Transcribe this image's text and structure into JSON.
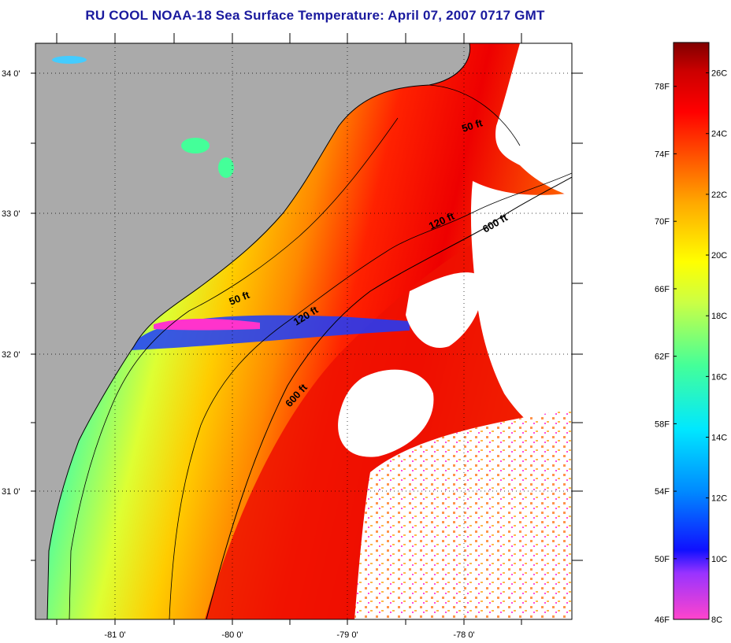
{
  "title": "RU COOL  NOAA-18  Sea Surface Temperature:  April 07, 2007 0717 GMT",
  "map": {
    "lat_ticks": [
      "34 0'",
      "33 0'",
      "32 0'",
      "31 0'"
    ],
    "lon_ticks": [
      "-81 0'",
      "-80 0'",
      "-79 0'",
      "-78 0'"
    ],
    "contours": [
      {
        "label": "50 ft"
      },
      {
        "label": "50 ft"
      },
      {
        "label": "120 ft"
      },
      {
        "label": "120 ft"
      },
      {
        "label": "600 ft"
      },
      {
        "label": "600 ft"
      }
    ],
    "colors": {
      "land": "#aaaaaa",
      "cloud": "#ffffff",
      "coast": "#000000"
    }
  },
  "colorbar": {
    "fahrenheit_labels": [
      "78F",
      "74F",
      "70F",
      "66F",
      "62F",
      "58F",
      "54F",
      "50F",
      "46F"
    ],
    "celsius_labels": [
      "26C",
      "24C",
      "22C",
      "20C",
      "18C",
      "16C",
      "14C",
      "12C",
      "10C",
      "8C"
    ],
    "range_c": [
      8,
      27
    ],
    "stops": [
      "#ff44cc",
      "#9933ff",
      "#1010ff",
      "#0088ff",
      "#00e8ff",
      "#44ff99",
      "#ccff44",
      "#ffff00",
      "#ffaa00",
      "#ff5500",
      "#ff0000",
      "#cc0000",
      "#800000"
    ]
  }
}
